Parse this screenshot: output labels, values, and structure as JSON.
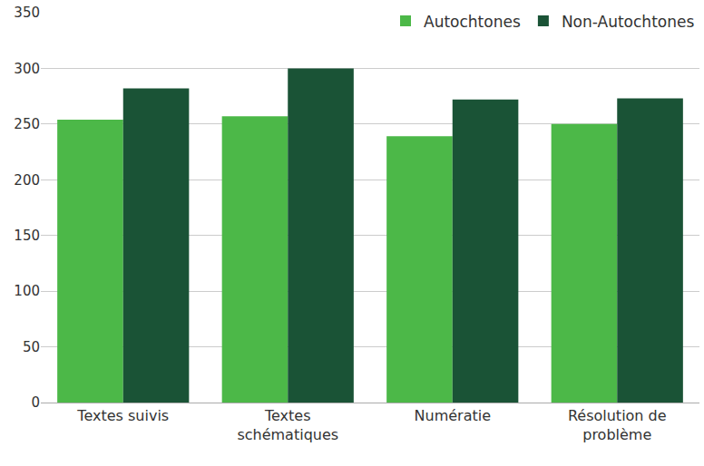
{
  "chart_data": {
    "type": "bar",
    "categories": [
      "Textes suivis",
      "Textes schématiques",
      "Numératie",
      "Résolution de problème"
    ],
    "series": [
      {
        "name": "Autochtones",
        "color": "#4cb848",
        "values": [
          254,
          257,
          239,
          250
        ]
      },
      {
        "name": "Non-Autochtones",
        "color": "#1a5336",
        "values": [
          282,
          300,
          272,
          273
        ]
      }
    ],
    "ylim": [
      0,
      350
    ],
    "yticks": [
      0,
      50,
      100,
      150,
      200,
      250,
      300,
      350
    ],
    "grid": true,
    "legend": "top right"
  }
}
